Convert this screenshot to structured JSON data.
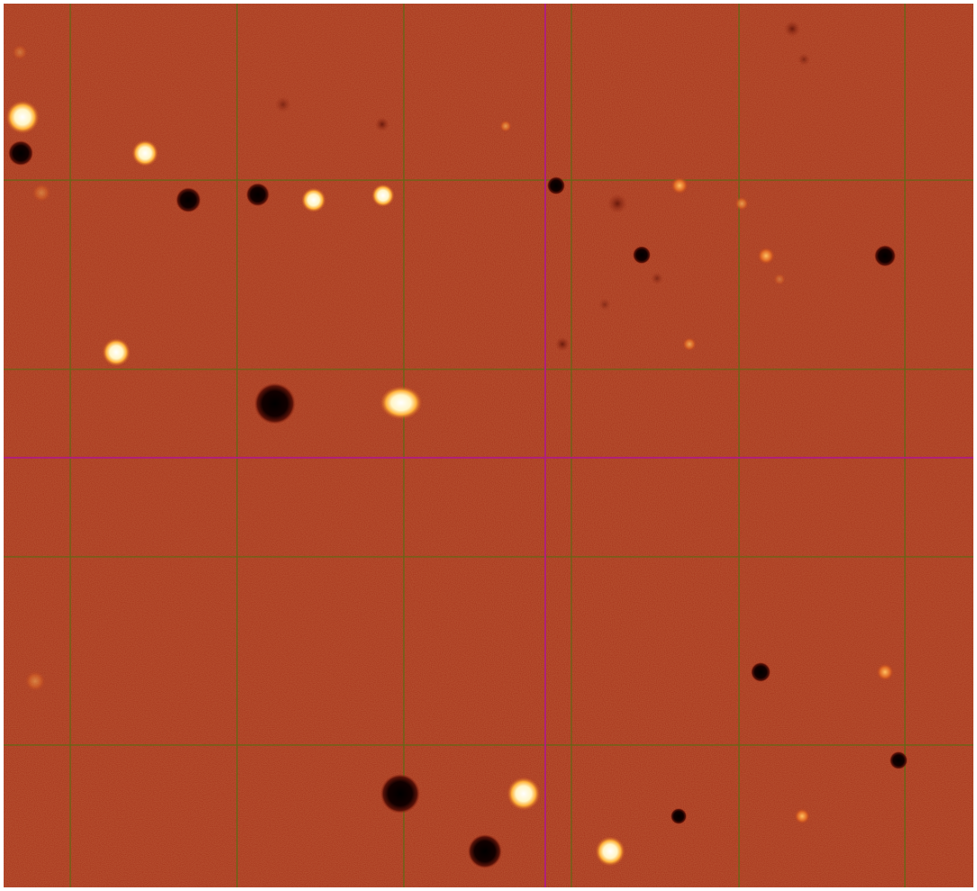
{
  "image": {
    "description_kind": "astronomical difference image with grid overlay",
    "colors": {
      "background": "#a8331a",
      "grid_line": "#5c6b14",
      "crosshair": "#b0207a",
      "bright_source": "#fffbe6",
      "dark_source": "#0b0000"
    }
  }
}
